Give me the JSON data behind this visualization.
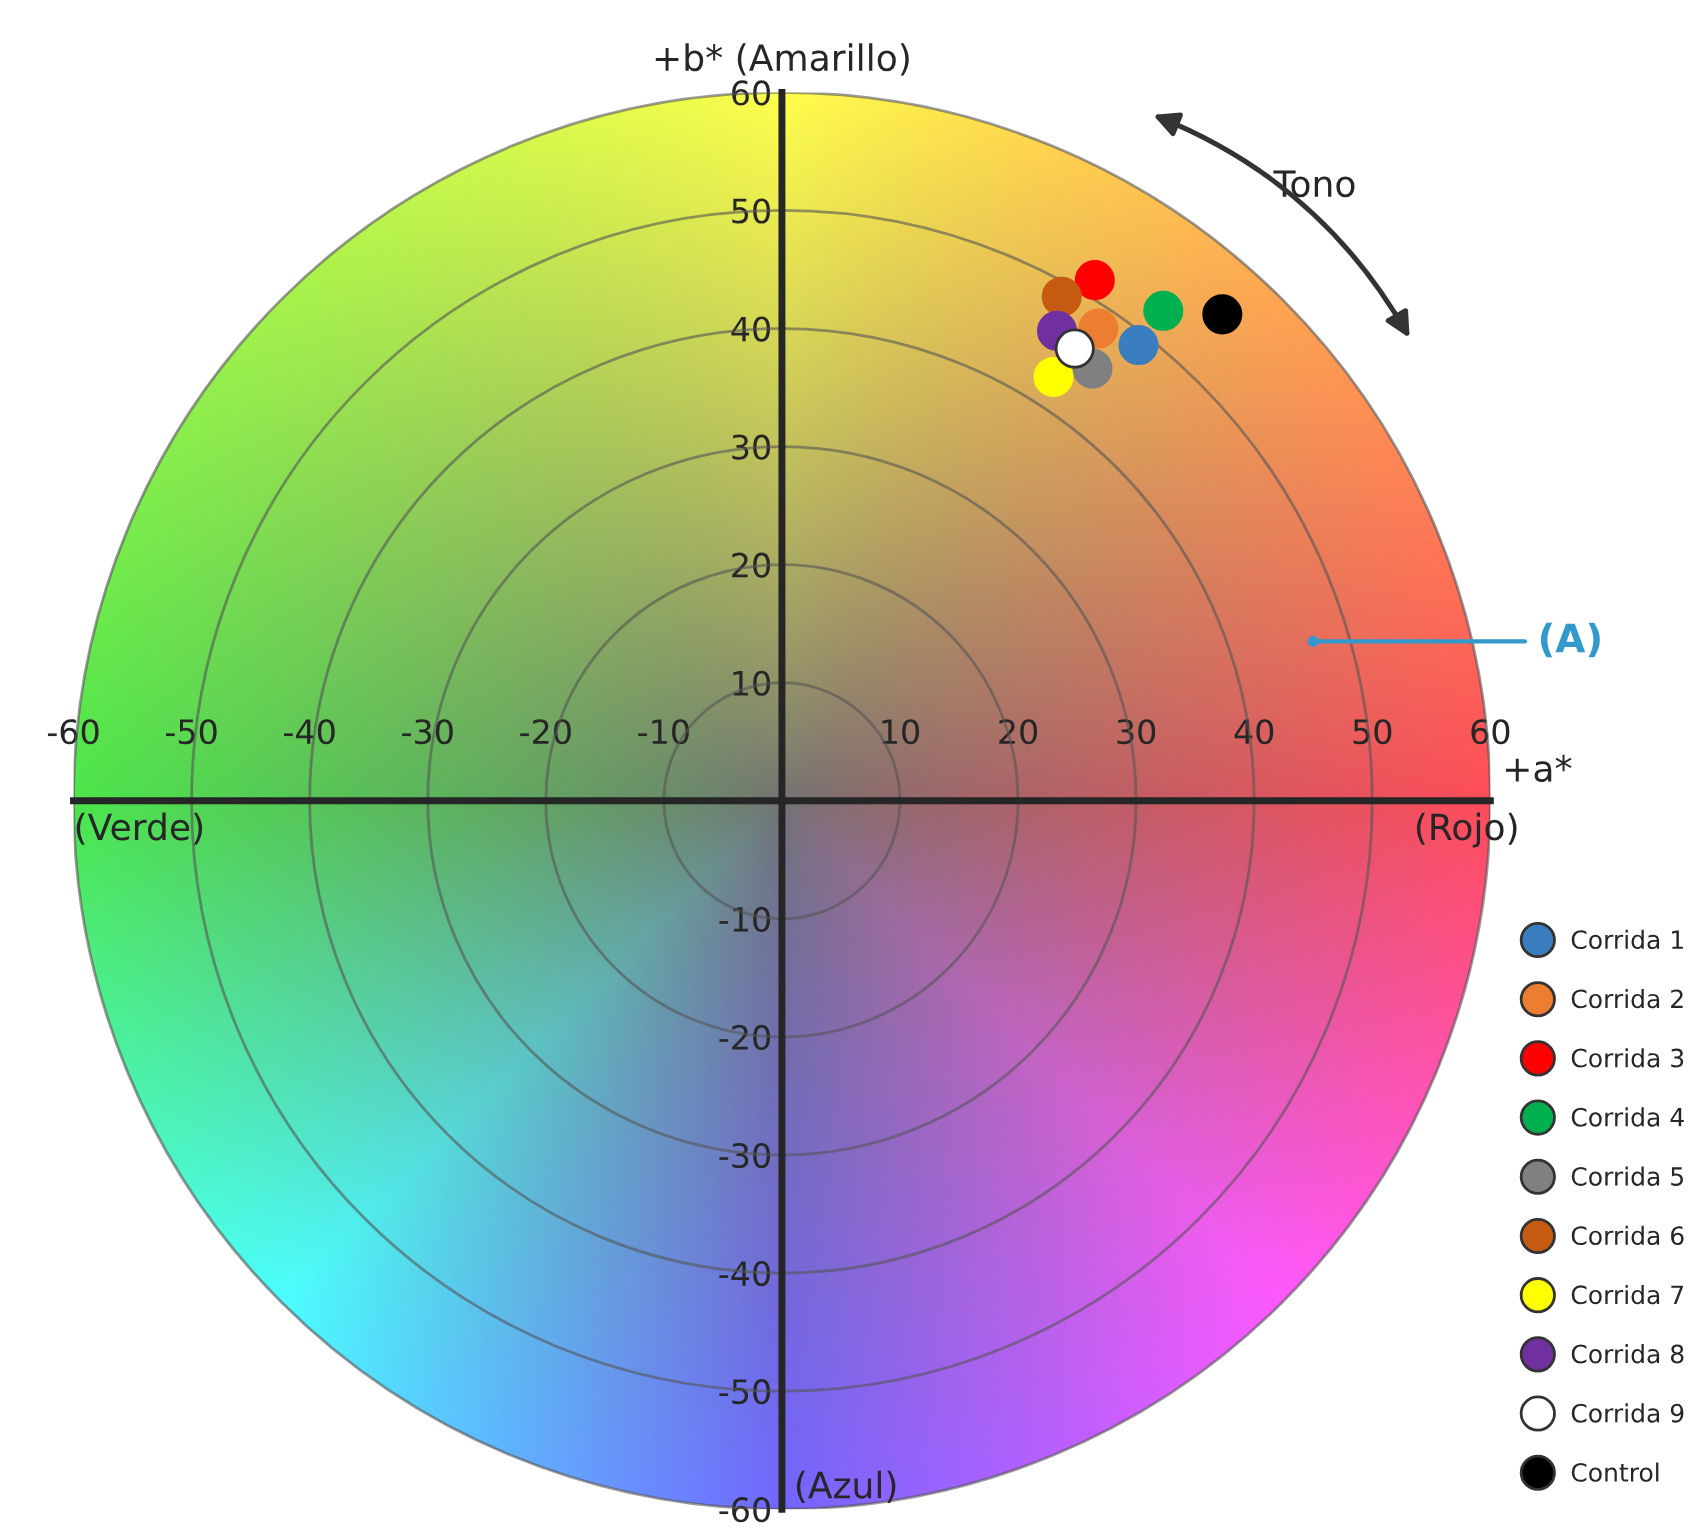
{
  "chart_data": {
    "type": "scatter",
    "xlabel": "+a*",
    "ylabel": "+b* (Amarillo)",
    "xlim": [
      -60,
      60
    ],
    "ylim": [
      -60,
      60
    ],
    "xticks": [
      -60,
      -50,
      -40,
      -30,
      -20,
      -10,
      10,
      20,
      30,
      40,
      50,
      60
    ],
    "yticks": [
      -60,
      -50,
      -40,
      -30,
      -20,
      -10,
      10,
      20,
      30,
      40,
      50,
      60
    ],
    "grid": false,
    "legend": "bottom right",
    "marker": "circle",
    "series": [
      {
        "name": "Corrida 1",
        "color": "#3a7ebf",
        "x": [
          30.2
        ],
        "values": [
          38.6
        ]
      },
      {
        "name": "Corrida 2",
        "color": "#ed7d31",
        "x": [
          26.8
        ],
        "values": [
          40.0
        ]
      },
      {
        "name": "Corrida 3",
        "color": "#ff0000",
        "x": [
          26.5
        ],
        "values": [
          44.1
        ]
      },
      {
        "name": "Corrida 4",
        "color": "#00b050",
        "x": [
          32.3
        ],
        "values": [
          41.5
        ]
      },
      {
        "name": "Corrida 5",
        "color": "#808080",
        "x": [
          26.3
        ],
        "values": [
          36.6
        ]
      },
      {
        "name": "Corrida 6",
        "color": "#c55a11",
        "x": [
          23.7
        ],
        "values": [
          42.7
        ]
      },
      {
        "name": "Corrida 7",
        "color": "#ffff00",
        "x": [
          23.0
        ],
        "values": [
          35.9
        ]
      },
      {
        "name": "Corrida 8",
        "color": "#7030a0",
        "x": [
          23.3
        ],
        "values": [
          39.8
        ]
      },
      {
        "name": "Corrida 9",
        "color": "#ffffff",
        "x": [
          24.8
        ],
        "values": [
          38.3
        ]
      },
      {
        "name": "Control",
        "color": "#000000",
        "x": [
          37.3
        ],
        "values": [
          41.2
        ]
      }
    ],
    "annotations": [
      "(Verde)",
      "(Rojo)",
      "(Azul)",
      "Tono",
      {
        "text": "(A)",
        "x": 45,
        "y": 13.5
      }
    ]
  }
}
